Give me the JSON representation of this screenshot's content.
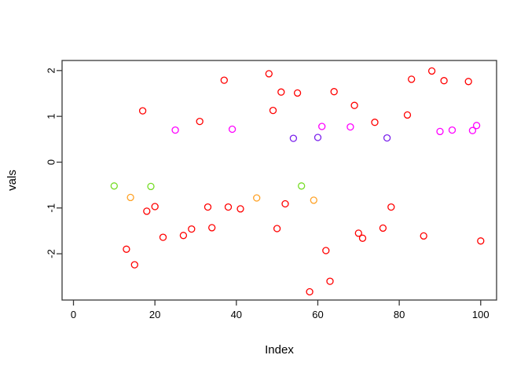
{
  "figure": {
    "background": "#FFFFFF",
    "axis_color": "#383838",
    "text_color": "#000000"
  },
  "chart_data": {
    "type": "scatter",
    "title": "",
    "xlabel": "Index",
    "ylabel": "vals",
    "x_ticks": [
      0,
      20,
      40,
      60,
      80,
      100
    ],
    "y_ticks": [
      -2,
      -1,
      0,
      1,
      2
    ],
    "xlim": [
      -2.8,
      103.9
    ],
    "ylim": [
      -3.01,
      2.22
    ],
    "grid": false,
    "legend": "none",
    "marker": "open-circle",
    "series": [
      {
        "name": "red",
        "color": "#FF0000",
        "points": [
          [
            13,
            -1.9
          ],
          [
            15,
            -2.24
          ],
          [
            17,
            1.12
          ],
          [
            18,
            -1.07
          ],
          [
            20,
            -0.97
          ],
          [
            22,
            -1.64
          ],
          [
            27,
            -1.6
          ],
          [
            29,
            -1.46
          ],
          [
            31,
            0.89
          ],
          [
            33,
            -0.98
          ],
          [
            34,
            -1.43
          ],
          [
            37,
            1.79
          ],
          [
            38,
            -0.98
          ],
          [
            41,
            -1.02
          ],
          [
            48,
            1.93
          ],
          [
            49,
            1.13
          ],
          [
            50,
            -1.45
          ],
          [
            51,
            1.53
          ],
          [
            52,
            -0.91
          ],
          [
            55,
            1.51
          ],
          [
            58,
            -2.83
          ],
          [
            62,
            -1.93
          ],
          [
            63,
            -2.6
          ],
          [
            64,
            1.54
          ],
          [
            69,
            1.24
          ],
          [
            70,
            -1.55
          ],
          [
            71,
            -1.66
          ],
          [
            74,
            0.87
          ],
          [
            76,
            -1.44
          ],
          [
            78,
            -0.98
          ],
          [
            82,
            1.03
          ],
          [
            83,
            1.81
          ],
          [
            86,
            -1.61
          ],
          [
            88,
            1.99
          ],
          [
            91,
            1.78
          ],
          [
            97,
            1.76
          ],
          [
            100,
            -1.72
          ]
        ]
      },
      {
        "name": "magenta",
        "color": "#FF00FF",
        "points": [
          [
            25,
            0.7
          ],
          [
            39,
            0.72
          ],
          [
            61,
            0.78
          ],
          [
            68,
            0.77
          ],
          [
            90,
            0.67
          ],
          [
            93,
            0.7
          ],
          [
            98,
            0.69
          ],
          [
            99,
            0.8
          ]
        ]
      },
      {
        "name": "violet",
        "color": "#7B22EC",
        "points": [
          [
            54,
            0.52
          ],
          [
            60,
            0.54
          ],
          [
            77,
            0.53
          ]
        ]
      },
      {
        "name": "green",
        "color": "#76DD26",
        "points": [
          [
            10,
            -0.52
          ],
          [
            19,
            -0.53
          ],
          [
            56,
            -0.52
          ]
        ]
      },
      {
        "name": "orange",
        "color": "#FFA226",
        "points": [
          [
            14,
            -0.77
          ],
          [
            45,
            -0.78
          ],
          [
            59,
            -0.83
          ]
        ]
      }
    ]
  }
}
